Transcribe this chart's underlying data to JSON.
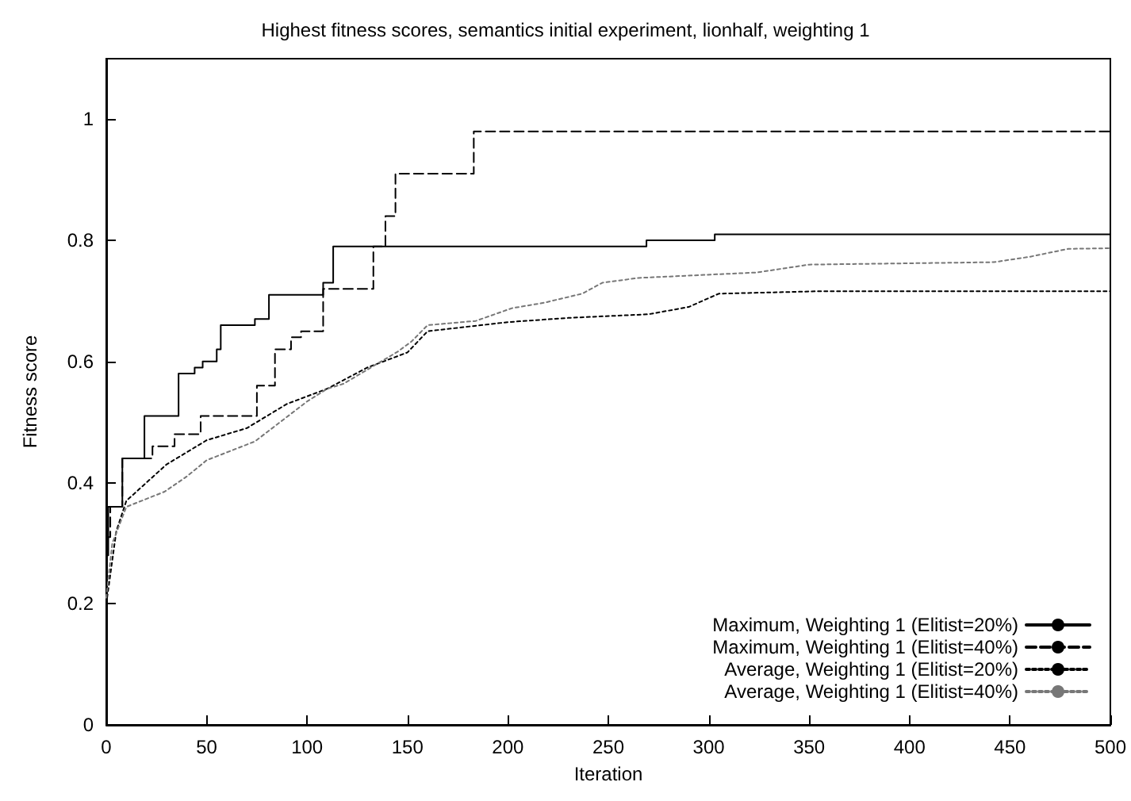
{
  "chart_data": {
    "type": "line",
    "title": "Highest fitness scores, semantics initial experiment, lionhalf, weighting 1",
    "xlabel": "Iteration",
    "ylabel": "Fitness score",
    "xlim": [
      0,
      500
    ],
    "xticks": [
      0,
      50,
      100,
      150,
      200,
      250,
      300,
      350,
      400,
      450,
      500
    ],
    "ylim": [
      0,
      1.1
    ],
    "yticks": [
      0,
      0.2,
      0.4,
      0.6,
      0.8,
      1
    ],
    "grid": false,
    "legend": "bottom right",
    "series": [
      {
        "name": "Maximum, Weighting 1 (Elitist=20%)",
        "type": "step",
        "line_style": "solid",
        "color": "#000000",
        "x": [
          0,
          1,
          8,
          19,
          36,
          44,
          48,
          55,
          57,
          74,
          81,
          108,
          113,
          269,
          303,
          500
        ],
        "values": [
          0.28,
          0.36,
          0.44,
          0.51,
          0.58,
          0.59,
          0.6,
          0.62,
          0.66,
          0.67,
          0.71,
          0.73,
          0.79,
          0.8,
          0.81,
          0.81
        ]
      },
      {
        "name": "Maximum, Weighting 1 (Elitist=40%)",
        "type": "step",
        "line_style": "dashed",
        "color": "#000000",
        "x": [
          0,
          2,
          8,
          23,
          34,
          47,
          75,
          84,
          92,
          97,
          108,
          133,
          139,
          144,
          183,
          500
        ],
        "values": [
          0.31,
          0.36,
          0.44,
          0.46,
          0.48,
          0.51,
          0.56,
          0.62,
          0.64,
          0.65,
          0.72,
          0.79,
          0.84,
          0.91,
          0.98,
          0.98
        ]
      },
      {
        "name": "Average, Weighting 1 (Elitist=20%)",
        "type": "line",
        "line_style": "dotted",
        "color": "#000000",
        "x": [
          0,
          5,
          10,
          20,
          30,
          40,
          50,
          70,
          90,
          110,
          130,
          150,
          160,
          200,
          230,
          270,
          290,
          305,
          355,
          500
        ],
        "values": [
          0.2,
          0.32,
          0.37,
          0.4,
          0.43,
          0.45,
          0.47,
          0.49,
          0.53,
          0.555,
          0.59,
          0.615,
          0.65,
          0.665,
          0.672,
          0.678,
          0.69,
          0.712,
          0.716,
          0.716
        ]
      },
      {
        "name": "Average, Weighting 1 (Elitist=40%)",
        "type": "line",
        "line_style": "dotted",
        "color": "#777777",
        "x": [
          0,
          3,
          10,
          29,
          40,
          50,
          74,
          100,
          110,
          118,
          145,
          152,
          160,
          184,
          202,
          218,
          237,
          247,
          265,
          324,
          350,
          442,
          460,
          479,
          500
        ],
        "values": [
          0.21,
          0.3,
          0.36,
          0.385,
          0.41,
          0.437,
          0.468,
          0.534,
          0.555,
          0.563,
          0.616,
          0.633,
          0.66,
          0.667,
          0.688,
          0.697,
          0.712,
          0.73,
          0.738,
          0.747,
          0.76,
          0.764,
          0.773,
          0.786,
          0.787
        ]
      }
    ]
  }
}
